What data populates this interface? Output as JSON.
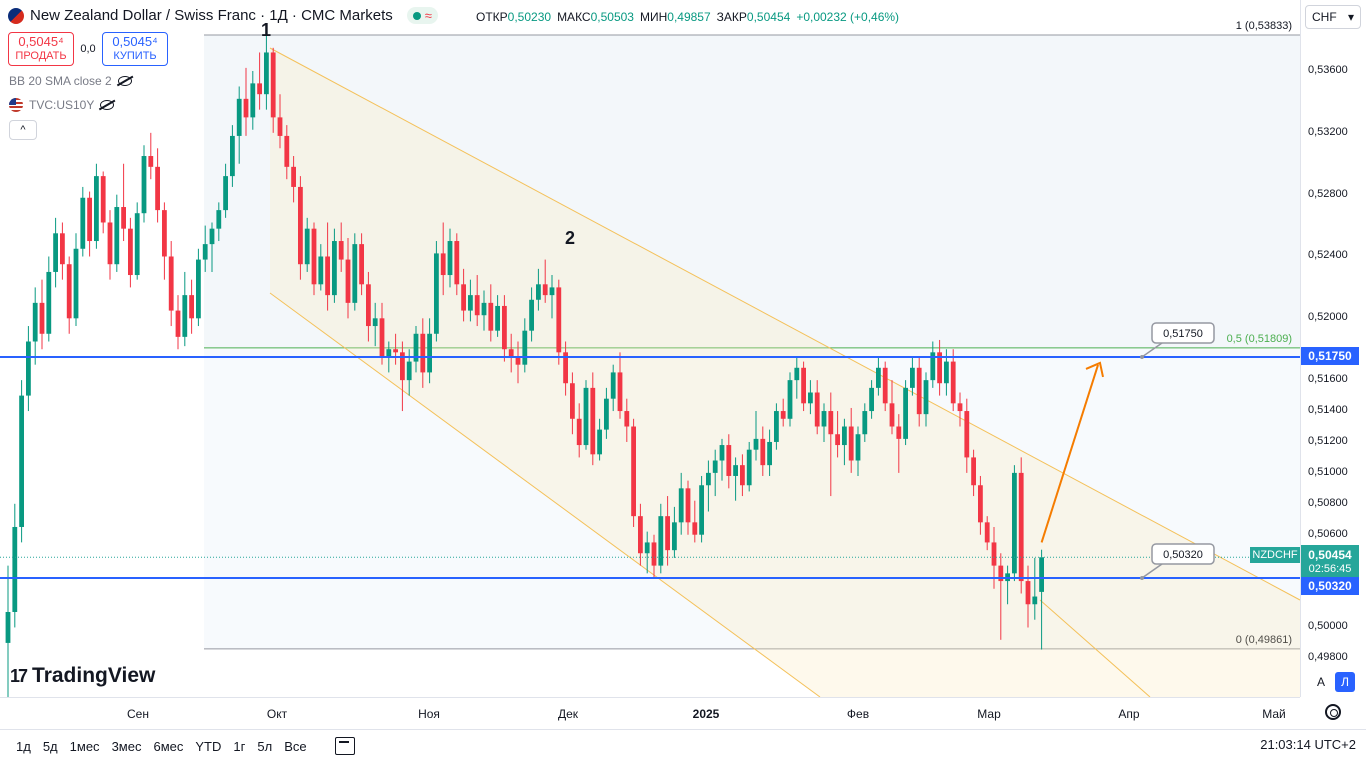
{
  "header": {
    "title": "New Zealand Dollar / Swiss Franc · 1Д · CMC Markets",
    "ohlc": [
      {
        "k": "ОТКР",
        "v": "0,50230"
      },
      {
        "k": "МАКС",
        "v": "0,50503"
      },
      {
        "k": "МИН",
        "v": "0,49857"
      },
      {
        "k": "ЗАКР",
        "v": "0,50454"
      },
      {
        "k": "",
        "v": "+0,00232 (+0,46%)"
      }
    ],
    "wave_glyph": "≈"
  },
  "trade": {
    "sell_price": "0,5045⁴",
    "sell_label": "ПРОДАТЬ",
    "spread": "0,0",
    "buy_price": "0,5045⁴",
    "buy_label": "КУПИТЬ"
  },
  "indicators": {
    "bb": "BB 20 SMA close 2",
    "us10y": "TVC:US10Y"
  },
  "collapse_glyph": "^",
  "logo": {
    "mark": "17",
    "text": "TradingView"
  },
  "currency": {
    "value": "CHF",
    "arrow": "▾"
  },
  "price_labels": {
    "symbol": "NZDCHF",
    "current": "0,50454",
    "countdown": "02:56:45",
    "level_upper": "0,51750",
    "level_lower": "0,50320"
  },
  "scale_buttons": {
    "auto": "A",
    "log": "Л"
  },
  "bottom_bar": {
    "ranges": [
      "1д",
      "5д",
      "1мес",
      "3мес",
      "6мес",
      "YTD",
      "1г",
      "5л",
      "Все"
    ],
    "clock": "21:03:14 UTC+2"
  },
  "colors": {
    "up": "#089981",
    "down": "#f23645",
    "level": "#2962ff",
    "channel": "#f4c15a",
    "fib": "#4caf50",
    "arrow": "#f57c00"
  },
  "chart_data": {
    "type": "candlestick",
    "price_axis_ticks": [
      "0,53600",
      "0,53200",
      "0,52800",
      "0,52400",
      "0,52000",
      "0,51600",
      "0,51400",
      "0,51200",
      "0,51000",
      "0,50800",
      "0,50600",
      "0,50000",
      "0,49800"
    ],
    "time_axis_ticks": [
      "Сен",
      "Окт",
      "Ноя",
      "Дек",
      "2025",
      "Фев",
      "Мар",
      "Апр",
      "Май"
    ],
    "ylim": [
      0.4955,
      0.5404
    ],
    "horizontal_levels": [
      0.5175,
      0.5032
    ],
    "fib": {
      "levels": [
        {
          "ratio": "1",
          "price": 0.53833,
          "label": "1 (0,53833)"
        },
        {
          "ratio": "0.5",
          "price": 0.51809,
          "label": "0,5 (0,51809)"
        },
        {
          "ratio": "0",
          "price": 0.49861,
          "label": "0 (0,49861)"
        }
      ]
    },
    "annotations": [
      {
        "text": "1"
      },
      {
        "text": "2"
      },
      {
        "text": "0,51750"
      },
      {
        "text": "0,50320"
      }
    ],
    "candles": [
      {
        "o": 0.499,
        "h": 0.504,
        "l": 0.4955,
        "c": 0.501
      },
      {
        "o": 0.501,
        "h": 0.508,
        "l": 0.5,
        "c": 0.5065
      },
      {
        "o": 0.5065,
        "h": 0.516,
        "l": 0.5055,
        "c": 0.515
      },
      {
        "o": 0.515,
        "h": 0.5195,
        "l": 0.514,
        "c": 0.5185
      },
      {
        "o": 0.5185,
        "h": 0.522,
        "l": 0.517,
        "c": 0.521
      },
      {
        "o": 0.521,
        "h": 0.5225,
        "l": 0.518,
        "c": 0.519
      },
      {
        "o": 0.519,
        "h": 0.524,
        "l": 0.5185,
        "c": 0.523
      },
      {
        "o": 0.523,
        "h": 0.5265,
        "l": 0.522,
        "c": 0.5255
      },
      {
        "o": 0.5255,
        "h": 0.5262,
        "l": 0.5225,
        "c": 0.5235
      },
      {
        "o": 0.5235,
        "h": 0.524,
        "l": 0.519,
        "c": 0.52
      },
      {
        "o": 0.52,
        "h": 0.5255,
        "l": 0.5195,
        "c": 0.5245
      },
      {
        "o": 0.5245,
        "h": 0.5285,
        "l": 0.524,
        "c": 0.5278
      },
      {
        "o": 0.5278,
        "h": 0.5282,
        "l": 0.524,
        "c": 0.525
      },
      {
        "o": 0.525,
        "h": 0.53,
        "l": 0.5245,
        "c": 0.5292
      },
      {
        "o": 0.5292,
        "h": 0.5295,
        "l": 0.5255,
        "c": 0.5262
      },
      {
        "o": 0.5262,
        "h": 0.527,
        "l": 0.5225,
        "c": 0.5235
      },
      {
        "o": 0.5235,
        "h": 0.528,
        "l": 0.523,
        "c": 0.5272
      },
      {
        "o": 0.5272,
        "h": 0.53,
        "l": 0.525,
        "c": 0.5258
      },
      {
        "o": 0.5258,
        "h": 0.5265,
        "l": 0.522,
        "c": 0.5228
      },
      {
        "o": 0.5228,
        "h": 0.5275,
        "l": 0.5225,
        "c": 0.5268
      },
      {
        "o": 0.5268,
        "h": 0.5312,
        "l": 0.5262,
        "c": 0.5305
      },
      {
        "o": 0.5305,
        "h": 0.532,
        "l": 0.529,
        "c": 0.5298
      },
      {
        "o": 0.5298,
        "h": 0.531,
        "l": 0.5262,
        "c": 0.527
      },
      {
        "o": 0.527,
        "h": 0.5275,
        "l": 0.5225,
        "c": 0.524
      },
      {
        "o": 0.524,
        "h": 0.525,
        "l": 0.5195,
        "c": 0.5205
      },
      {
        "o": 0.5205,
        "h": 0.5215,
        "l": 0.518,
        "c": 0.5188
      },
      {
        "o": 0.5188,
        "h": 0.523,
        "l": 0.5182,
        "c": 0.5215
      },
      {
        "o": 0.5215,
        "h": 0.5225,
        "l": 0.519,
        "c": 0.52
      },
      {
        "o": 0.52,
        "h": 0.5245,
        "l": 0.5195,
        "c": 0.5238
      },
      {
        "o": 0.5238,
        "h": 0.526,
        "l": 0.523,
        "c": 0.5248
      },
      {
        "o": 0.5248,
        "h": 0.5262,
        "l": 0.523,
        "c": 0.5258
      },
      {
        "o": 0.5258,
        "h": 0.5275,
        "l": 0.525,
        "c": 0.527
      },
      {
        "o": 0.527,
        "h": 0.53,
        "l": 0.5265,
        "c": 0.5292
      },
      {
        "o": 0.5292,
        "h": 0.5325,
        "l": 0.5285,
        "c": 0.5318
      },
      {
        "o": 0.5318,
        "h": 0.535,
        "l": 0.53,
        "c": 0.5342
      },
      {
        "o": 0.5342,
        "h": 0.5362,
        "l": 0.5318,
        "c": 0.533
      },
      {
        "o": 0.533,
        "h": 0.536,
        "l": 0.5322,
        "c": 0.5352
      },
      {
        "o": 0.5352,
        "h": 0.5372,
        "l": 0.5335,
        "c": 0.5345
      },
      {
        "o": 0.5345,
        "h": 0.5383,
        "l": 0.5335,
        "c": 0.5372
      },
      {
        "o": 0.5372,
        "h": 0.5375,
        "l": 0.532,
        "c": 0.533
      },
      {
        "o": 0.533,
        "h": 0.5345,
        "l": 0.531,
        "c": 0.5318
      },
      {
        "o": 0.5318,
        "h": 0.5325,
        "l": 0.529,
        "c": 0.5298
      },
      {
        "o": 0.5298,
        "h": 0.5305,
        "l": 0.5275,
        "c": 0.5285
      },
      {
        "o": 0.5285,
        "h": 0.5292,
        "l": 0.5225,
        "c": 0.5235
      },
      {
        "o": 0.5235,
        "h": 0.5265,
        "l": 0.523,
        "c": 0.5258
      },
      {
        "o": 0.5258,
        "h": 0.5262,
        "l": 0.5215,
        "c": 0.5222
      },
      {
        "o": 0.5222,
        "h": 0.5248,
        "l": 0.5218,
        "c": 0.524
      },
      {
        "o": 0.524,
        "h": 0.5262,
        "l": 0.5205,
        "c": 0.5215
      },
      {
        "o": 0.5215,
        "h": 0.5258,
        "l": 0.521,
        "c": 0.525
      },
      {
        "o": 0.525,
        "h": 0.5262,
        "l": 0.523,
        "c": 0.5238
      },
      {
        "o": 0.5238,
        "h": 0.5252,
        "l": 0.52,
        "c": 0.521
      },
      {
        "o": 0.521,
        "h": 0.5255,
        "l": 0.5205,
        "c": 0.5248
      },
      {
        "o": 0.5248,
        "h": 0.5255,
        "l": 0.5215,
        "c": 0.5222
      },
      {
        "o": 0.5222,
        "h": 0.523,
        "l": 0.5185,
        "c": 0.5195
      },
      {
        "o": 0.5195,
        "h": 0.521,
        "l": 0.5182,
        "c": 0.52
      },
      {
        "o": 0.52,
        "h": 0.521,
        "l": 0.517,
        "c": 0.5175
      },
      {
        "o": 0.5175,
        "h": 0.5185,
        "l": 0.5165,
        "c": 0.518
      },
      {
        "o": 0.518,
        "h": 0.519,
        "l": 0.517,
        "c": 0.5178
      },
      {
        "o": 0.5178,
        "h": 0.5185,
        "l": 0.514,
        "c": 0.516
      },
      {
        "o": 0.516,
        "h": 0.518,
        "l": 0.515,
        "c": 0.5172
      },
      {
        "o": 0.5172,
        "h": 0.5195,
        "l": 0.5165,
        "c": 0.519
      },
      {
        "o": 0.519,
        "h": 0.52,
        "l": 0.5155,
        "c": 0.5165
      },
      {
        "o": 0.5165,
        "h": 0.52,
        "l": 0.5158,
        "c": 0.519
      },
      {
        "o": 0.519,
        "h": 0.525,
        "l": 0.5185,
        "c": 0.5242
      },
      {
        "o": 0.5242,
        "h": 0.5262,
        "l": 0.5215,
        "c": 0.5228
      },
      {
        "o": 0.5228,
        "h": 0.5258,
        "l": 0.522,
        "c": 0.525
      },
      {
        "o": 0.525,
        "h": 0.5255,
        "l": 0.5215,
        "c": 0.5222
      },
      {
        "o": 0.5222,
        "h": 0.5232,
        "l": 0.5198,
        "c": 0.5205
      },
      {
        "o": 0.5205,
        "h": 0.5225,
        "l": 0.5198,
        "c": 0.5215
      },
      {
        "o": 0.5215,
        "h": 0.5228,
        "l": 0.5195,
        "c": 0.5202
      },
      {
        "o": 0.5202,
        "h": 0.5218,
        "l": 0.5192,
        "c": 0.521
      },
      {
        "o": 0.521,
        "h": 0.5222,
        "l": 0.5185,
        "c": 0.5192
      },
      {
        "o": 0.5192,
        "h": 0.5215,
        "l": 0.5188,
        "c": 0.5208
      },
      {
        "o": 0.5208,
        "h": 0.5215,
        "l": 0.5172,
        "c": 0.518
      },
      {
        "o": 0.518,
        "h": 0.519,
        "l": 0.5165,
        "c": 0.5175
      },
      {
        "o": 0.5175,
        "h": 0.5185,
        "l": 0.5158,
        "c": 0.517
      },
      {
        "o": 0.517,
        "h": 0.52,
        "l": 0.5165,
        "c": 0.5192
      },
      {
        "o": 0.5192,
        "h": 0.522,
        "l": 0.5185,
        "c": 0.5212
      },
      {
        "o": 0.5212,
        "h": 0.5232,
        "l": 0.5205,
        "c": 0.5222
      },
      {
        "o": 0.5222,
        "h": 0.5238,
        "l": 0.521,
        "c": 0.5215
      },
      {
        "o": 0.5215,
        "h": 0.5228,
        "l": 0.52,
        "c": 0.522
      },
      {
        "o": 0.522,
        "h": 0.5225,
        "l": 0.517,
        "c": 0.5178
      },
      {
        "o": 0.5178,
        "h": 0.5185,
        "l": 0.515,
        "c": 0.5158
      },
      {
        "o": 0.5158,
        "h": 0.5165,
        "l": 0.5125,
        "c": 0.5135
      },
      {
        "o": 0.5135,
        "h": 0.5145,
        "l": 0.511,
        "c": 0.5118
      },
      {
        "o": 0.5118,
        "h": 0.516,
        "l": 0.5115,
        "c": 0.5155
      },
      {
        "o": 0.5155,
        "h": 0.5165,
        "l": 0.5105,
        "c": 0.5112
      },
      {
        "o": 0.5112,
        "h": 0.5135,
        "l": 0.5108,
        "c": 0.5128
      },
      {
        "o": 0.5128,
        "h": 0.5155,
        "l": 0.5122,
        "c": 0.5148
      },
      {
        "o": 0.5148,
        "h": 0.517,
        "l": 0.514,
        "c": 0.5165
      },
      {
        "o": 0.5165,
        "h": 0.5178,
        "l": 0.5135,
        "c": 0.514
      },
      {
        "o": 0.514,
        "h": 0.5148,
        "l": 0.512,
        "c": 0.513
      },
      {
        "o": 0.513,
        "h": 0.5135,
        "l": 0.5065,
        "c": 0.5072
      },
      {
        "o": 0.5072,
        "h": 0.508,
        "l": 0.504,
        "c": 0.5048
      },
      {
        "o": 0.5048,
        "h": 0.5062,
        "l": 0.5035,
        "c": 0.5055
      },
      {
        "o": 0.5055,
        "h": 0.506,
        "l": 0.5032,
        "c": 0.504
      },
      {
        "o": 0.504,
        "h": 0.508,
        "l": 0.5035,
        "c": 0.5072
      },
      {
        "o": 0.5072,
        "h": 0.5085,
        "l": 0.504,
        "c": 0.505
      },
      {
        "o": 0.505,
        "h": 0.5078,
        "l": 0.5045,
        "c": 0.5068
      },
      {
        "o": 0.5068,
        "h": 0.51,
        "l": 0.506,
        "c": 0.509
      },
      {
        "o": 0.509,
        "h": 0.5095,
        "l": 0.506,
        "c": 0.5068
      },
      {
        "o": 0.5068,
        "h": 0.5082,
        "l": 0.5055,
        "c": 0.506
      },
      {
        "o": 0.506,
        "h": 0.5098,
        "l": 0.5055,
        "c": 0.5092
      },
      {
        "o": 0.5092,
        "h": 0.5108,
        "l": 0.5075,
        "c": 0.51
      },
      {
        "o": 0.51,
        "h": 0.5115,
        "l": 0.5085,
        "c": 0.5108
      },
      {
        "o": 0.5108,
        "h": 0.5122,
        "l": 0.5095,
        "c": 0.5118
      },
      {
        "o": 0.5118,
        "h": 0.5125,
        "l": 0.509,
        "c": 0.5098
      },
      {
        "o": 0.5098,
        "h": 0.511,
        "l": 0.5082,
        "c": 0.5105
      },
      {
        "o": 0.5105,
        "h": 0.5112,
        "l": 0.5085,
        "c": 0.5092
      },
      {
        "o": 0.5092,
        "h": 0.512,
        "l": 0.5088,
        "c": 0.5115
      },
      {
        "o": 0.5115,
        "h": 0.514,
        "l": 0.5108,
        "c": 0.5122
      },
      {
        "o": 0.5122,
        "h": 0.513,
        "l": 0.5098,
        "c": 0.5105
      },
      {
        "o": 0.5105,
        "h": 0.5128,
        "l": 0.5098,
        "c": 0.512
      },
      {
        "o": 0.512,
        "h": 0.5145,
        "l": 0.5115,
        "c": 0.514
      },
      {
        "o": 0.514,
        "h": 0.5148,
        "l": 0.513,
        "c": 0.5135
      },
      {
        "o": 0.5135,
        "h": 0.5165,
        "l": 0.513,
        "c": 0.516
      },
      {
        "o": 0.516,
        "h": 0.5175,
        "l": 0.5148,
        "c": 0.5168
      },
      {
        "o": 0.5168,
        "h": 0.5172,
        "l": 0.514,
        "c": 0.5145
      },
      {
        "o": 0.5145,
        "h": 0.516,
        "l": 0.5138,
        "c": 0.5152
      },
      {
        "o": 0.5152,
        "h": 0.516,
        "l": 0.5125,
        "c": 0.513
      },
      {
        "o": 0.513,
        "h": 0.5145,
        "l": 0.512,
        "c": 0.514
      },
      {
        "o": 0.514,
        "h": 0.5152,
        "l": 0.5085,
        "c": 0.5125
      },
      {
        "o": 0.5125,
        "h": 0.514,
        "l": 0.511,
        "c": 0.5118
      },
      {
        "o": 0.5118,
        "h": 0.5135,
        "l": 0.5105,
        "c": 0.513
      },
      {
        "o": 0.513,
        "h": 0.5142,
        "l": 0.51,
        "c": 0.5108
      },
      {
        "o": 0.5108,
        "h": 0.513,
        "l": 0.5098,
        "c": 0.5125
      },
      {
        "o": 0.5125,
        "h": 0.5145,
        "l": 0.512,
        "c": 0.514
      },
      {
        "o": 0.514,
        "h": 0.516,
        "l": 0.5135,
        "c": 0.5155
      },
      {
        "o": 0.5155,
        "h": 0.5175,
        "l": 0.515,
        "c": 0.5168
      },
      {
        "o": 0.5168,
        "h": 0.5172,
        "l": 0.514,
        "c": 0.5145
      },
      {
        "o": 0.5145,
        "h": 0.516,
        "l": 0.5125,
        "c": 0.513
      },
      {
        "o": 0.513,
        "h": 0.5138,
        "l": 0.51,
        "c": 0.5122
      },
      {
        "o": 0.5122,
        "h": 0.516,
        "l": 0.5118,
        "c": 0.5155
      },
      {
        "o": 0.5155,
        "h": 0.5175,
        "l": 0.515,
        "c": 0.5168
      },
      {
        "o": 0.5168,
        "h": 0.5175,
        "l": 0.513,
        "c": 0.5138
      },
      {
        "o": 0.5138,
        "h": 0.5165,
        "l": 0.513,
        "c": 0.516
      },
      {
        "o": 0.516,
        "h": 0.5185,
        "l": 0.5155,
        "c": 0.5178
      },
      {
        "o": 0.5178,
        "h": 0.5186,
        "l": 0.515,
        "c": 0.5158
      },
      {
        "o": 0.5158,
        "h": 0.518,
        "l": 0.515,
        "c": 0.5172
      },
      {
        "o": 0.5172,
        "h": 0.518,
        "l": 0.514,
        "c": 0.5145
      },
      {
        "o": 0.5145,
        "h": 0.5152,
        "l": 0.513,
        "c": 0.514
      },
      {
        "o": 0.514,
        "h": 0.5148,
        "l": 0.51,
        "c": 0.511
      },
      {
        "o": 0.511,
        "h": 0.5115,
        "l": 0.5085,
        "c": 0.5092
      },
      {
        "o": 0.5092,
        "h": 0.5098,
        "l": 0.506,
        "c": 0.5068
      },
      {
        "o": 0.5068,
        "h": 0.5072,
        "l": 0.505,
        "c": 0.5055
      },
      {
        "o": 0.5055,
        "h": 0.5065,
        "l": 0.5025,
        "c": 0.504
      },
      {
        "o": 0.504,
        "h": 0.5048,
        "l": 0.4992,
        "c": 0.503
      },
      {
        "o": 0.503,
        "h": 0.504,
        "l": 0.5015,
        "c": 0.5035
      },
      {
        "o": 0.5035,
        "h": 0.5105,
        "l": 0.503,
        "c": 0.51
      },
      {
        "o": 0.51,
        "h": 0.511,
        "l": 0.5022,
        "c": 0.503
      },
      {
        "o": 0.503,
        "h": 0.504,
        "l": 0.5,
        "c": 0.5015
      },
      {
        "o": 0.5015,
        "h": 0.5045,
        "l": 0.5005,
        "c": 0.502
      },
      {
        "o": 0.5023,
        "h": 0.50503,
        "l": 0.49857,
        "c": 0.50454
      }
    ]
  }
}
